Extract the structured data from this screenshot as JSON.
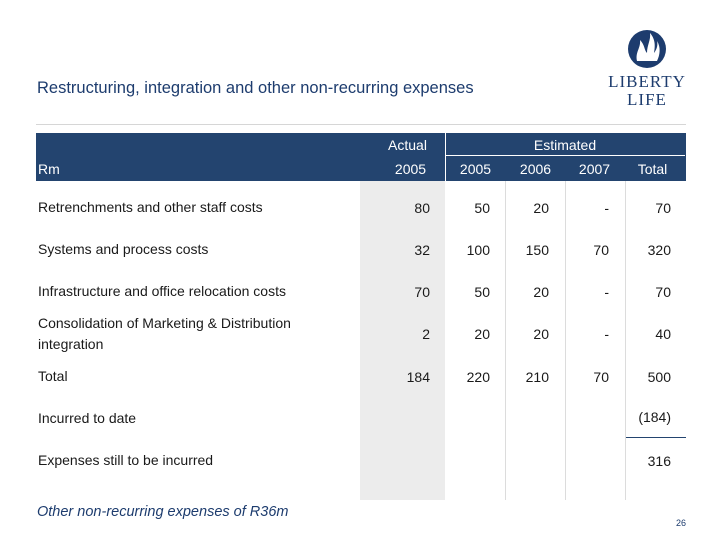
{
  "title": "Restructuring, integration and other non-recurring expenses",
  "logo": {
    "line1": "LIBERTY",
    "line2": "LIFE",
    "icon": "flame-crest-icon"
  },
  "header": {
    "rm": "Rm",
    "actual": "Actual",
    "estimated": "Estimated",
    "cols": [
      "2005",
      "2005",
      "2006",
      "2007",
      "Total"
    ]
  },
  "rows": [
    {
      "label": "Retrenchments and other staff costs",
      "values": [
        "80",
        "50",
        "20",
        "-",
        "70"
      ]
    },
    {
      "label": "Systems and process costs",
      "values": [
        "32",
        "100",
        "150",
        "70",
        "320"
      ]
    },
    {
      "label": "Infrastructure and office relocation costs",
      "values": [
        "70",
        "50",
        "20",
        "-",
        "70"
      ]
    },
    {
      "label_line1": "Consolidation of Marketing & Distribution",
      "label_line2": "integration",
      "values": [
        "2",
        "20",
        "20",
        "-",
        "40"
      ]
    },
    {
      "label": "Total",
      "values": [
        "184",
        "220",
        "210",
        "70",
        "500"
      ]
    }
  ],
  "incurred": {
    "label": "Incurred to date",
    "value": "(184)"
  },
  "still": {
    "label": "Expenses still to be incurred",
    "value": "316"
  },
  "footnote": "Other non-recurring expenses of R36m",
  "page_number": "26",
  "colors": {
    "navy": "#23446f",
    "title": "#1d3c6e",
    "actual_shade": "#ececec"
  }
}
